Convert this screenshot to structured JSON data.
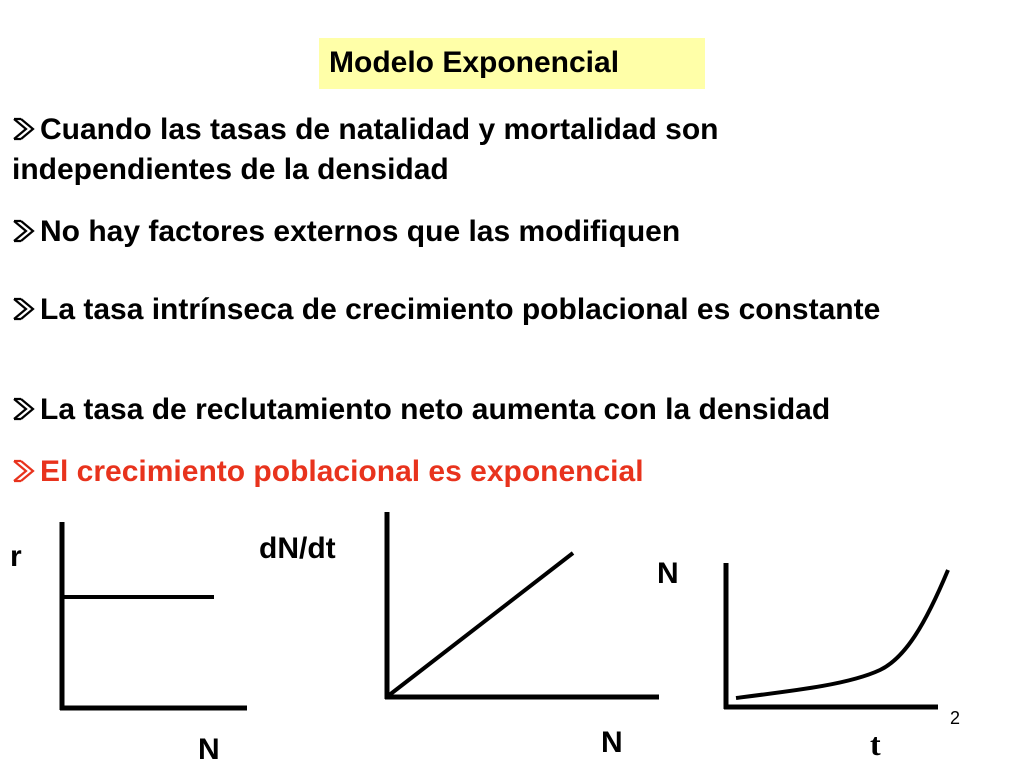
{
  "title": "Modelo Exponencial",
  "colors": {
    "title_background": "#ffffa8",
    "highlight_text": "#e8331d",
    "text": "#000000"
  },
  "bullets": [
    {
      "text": "Cuando las tasas de  natalidad y mortalidad son independientes de la densidad",
      "icon": "arrow-bullet-icon"
    },
    {
      "text": "No hay factores externos que las modifiquen",
      "icon": "arrow-bullet-icon"
    },
    {
      "text": "La tasa intrínseca de crecimiento poblacional es constante",
      "icon": "arrow-bullet-icon"
    },
    {
      "text": "La tasa de reclutamiento neto aumenta con la densidad",
      "icon": "arrow-bullet-icon"
    },
    {
      "text": "El crecimiento poblacional es exponencial",
      "icon": "arrow-bullet-icon",
      "color": "#e8331d"
    }
  ],
  "graphs": [
    {
      "type": "line",
      "y_label": "r",
      "x_label": "N",
      "curve": "constant"
    },
    {
      "type": "line",
      "y_label": "dN/dt",
      "x_label": "N",
      "curve": "linear"
    },
    {
      "type": "line",
      "y_label": "N",
      "x_label": "t",
      "curve": "exponential"
    }
  ],
  "page_number": "2"
}
